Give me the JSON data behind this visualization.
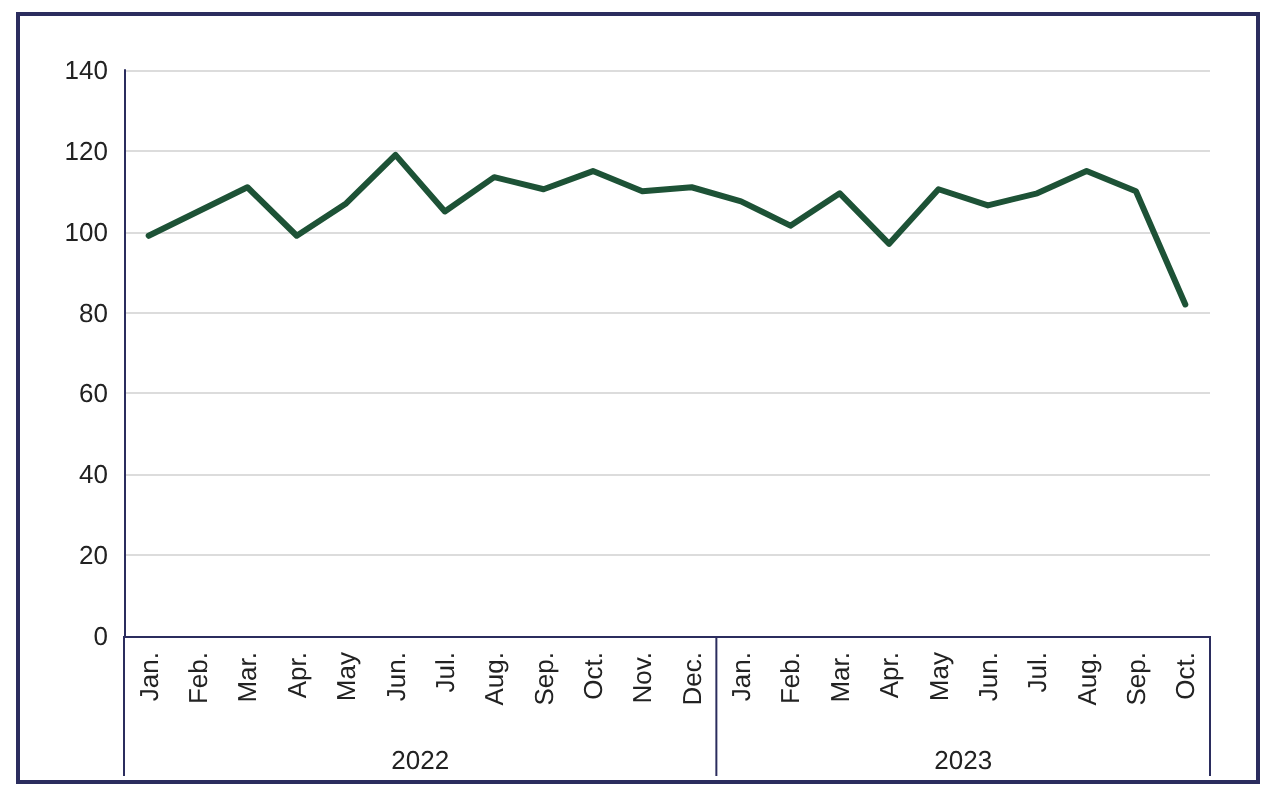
{
  "chart_data": {
    "type": "line",
    "categories": [
      "Jan.",
      "Feb.",
      "Mar.",
      "Apr.",
      "May",
      "Jun.",
      "Jul.",
      "Aug.",
      "Sep.",
      "Oct.",
      "Nov.",
      "Dec.",
      "Jan.",
      "Feb.",
      "Mar.",
      "Apr.",
      "May",
      "Jun.",
      "Jul.",
      "Aug.",
      "Sep.",
      "Oct."
    ],
    "series": [
      {
        "color": "#1d5236",
        "values": [
          99,
          105,
          111,
          99,
          107,
          119,
          105,
          113.5,
          110.5,
          115,
          110,
          111,
          107.5,
          101.5,
          109.5,
          97,
          110.5,
          106.5,
          109.5,
          115,
          110,
          82
        ]
      }
    ],
    "annotations": [
      "2022",
      "2023"
    ],
    "ylim": [
      0,
      140
    ],
    "yticks": [
      0,
      20,
      40,
      60,
      80,
      100,
      120,
      140
    ],
    "grid": "y",
    "marker": "none",
    "line_style": "solid"
  }
}
